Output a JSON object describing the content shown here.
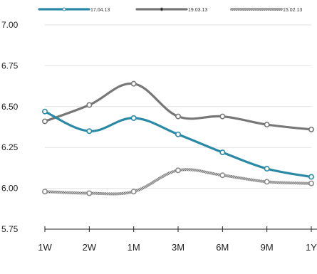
{
  "chart_data": {
    "type": "line",
    "title": "",
    "xlabel": "",
    "ylabel": "",
    "categories": [
      "1W",
      "2W",
      "1M",
      "3M",
      "6M",
      "9M",
      "1Y"
    ],
    "ylim": [
      5.75,
      7.0
    ],
    "yticks": [
      "5.75",
      "6.00",
      "6.25",
      "6.50",
      "6.75",
      "7.00"
    ],
    "grid": true,
    "legend_position": "top",
    "series": [
      {
        "name": "17.04.13",
        "color": "#2a8aa6",
        "style": "solid",
        "values": [
          6.47,
          6.35,
          6.43,
          6.33,
          6.22,
          6.12,
          6.07
        ]
      },
      {
        "name": "19.03.13",
        "color": "#777777",
        "style": "solid",
        "values": [
          6.41,
          6.51,
          6.64,
          6.44,
          6.44,
          6.39,
          6.36
        ]
      },
      {
        "name": "15.02.13",
        "color": "#9a9a9a",
        "style": "hatched",
        "values": [
          5.98,
          5.97,
          5.98,
          6.11,
          6.08,
          6.04,
          6.03
        ]
      }
    ]
  }
}
